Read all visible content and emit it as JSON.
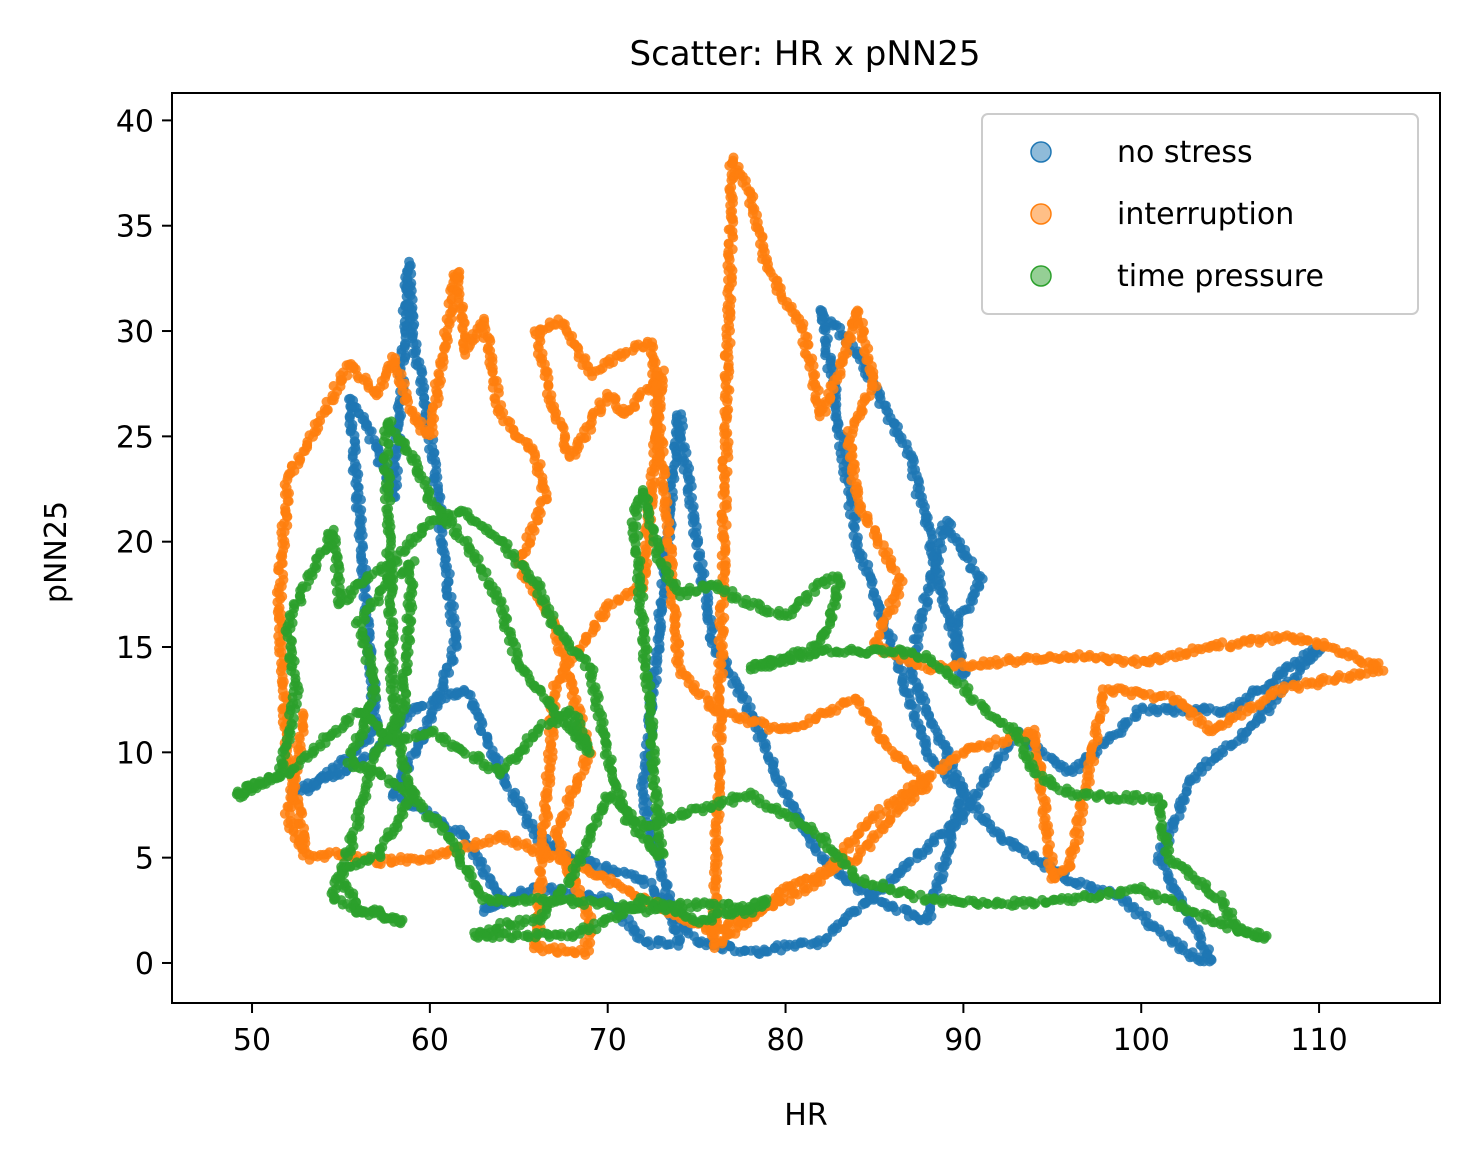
{
  "chart_data": {
    "type": "scatter",
    "title": "Scatter: HR x pNN25",
    "xlabel": "HR",
    "ylabel": "pNN25",
    "xlim": [
      45.5,
      116.8
    ],
    "ylim": [
      -1.9,
      41.3
    ],
    "xticks": [
      50,
      60,
      70,
      80,
      90,
      100,
      110
    ],
    "yticks": [
      0,
      5,
      10,
      15,
      20,
      25,
      30,
      35,
      40
    ],
    "grid": false,
    "legend_position": "top-right",
    "series": [
      {
        "name": "no stress",
        "color": "#1f77b4",
        "trace": [
          [
            53,
            8.2
          ],
          [
            55,
            9.5
          ],
          [
            57,
            11
          ],
          [
            55.5,
            26.8
          ],
          [
            56.5,
            25.5
          ],
          [
            58,
            22
          ],
          [
            58.8,
            33.2
          ],
          [
            59,
            30
          ],
          [
            60,
            25
          ],
          [
            61.5,
            15
          ],
          [
            60,
            11.5
          ],
          [
            58,
            8
          ],
          [
            62,
            6
          ],
          [
            64,
            3
          ],
          [
            63,
            2.5
          ],
          [
            66,
            3.6
          ],
          [
            70,
            3
          ],
          [
            72,
            1
          ],
          [
            74,
            0.9
          ],
          [
            72,
            8
          ],
          [
            74,
            26
          ],
          [
            75,
            20
          ],
          [
            76,
            15
          ],
          [
            78,
            12
          ],
          [
            80,
            8
          ],
          [
            82,
            5
          ],
          [
            85,
            3
          ],
          [
            88,
            2
          ],
          [
            90,
            8
          ],
          [
            87,
            14
          ],
          [
            89,
            21
          ],
          [
            91,
            18
          ],
          [
            89.5,
            16
          ],
          [
            90,
            13.5
          ],
          [
            87,
            24
          ],
          [
            84,
            29
          ],
          [
            82,
            31
          ],
          [
            84,
            20
          ],
          [
            88,
            10
          ],
          [
            92,
            6
          ],
          [
            96,
            4
          ],
          [
            99,
            3
          ],
          [
            101,
            1.5
          ],
          [
            103,
            0.3
          ],
          [
            104,
            0.1
          ],
          [
            101,
            5
          ],
          [
            103,
            9
          ],
          [
            106,
            11
          ],
          [
            110,
            15
          ],
          [
            105,
            12
          ],
          [
            100,
            12
          ],
          [
            96,
            9
          ],
          [
            93,
            11
          ],
          [
            90,
            7
          ],
          [
            86,
            4
          ],
          [
            82,
            1
          ],
          [
            78,
            0.5
          ],
          [
            75,
            1
          ],
          [
            72,
            4
          ],
          [
            68,
            5
          ],
          [
            66,
            6
          ],
          [
            64,
            9
          ],
          [
            62,
            13
          ],
          [
            59,
            12
          ],
          [
            57,
            10
          ],
          [
            55,
            9
          ],
          [
            52,
            8
          ]
        ]
      },
      {
        "name": "interruption",
        "color": "#ff7f0e",
        "trace": [
          [
            53,
            5.5
          ],
          [
            52,
            10
          ],
          [
            51.5,
            17
          ],
          [
            52,
            23
          ],
          [
            54,
            26
          ],
          [
            55.5,
            28.5
          ],
          [
            57,
            27
          ],
          [
            58,
            28.8
          ],
          [
            59,
            26
          ],
          [
            60,
            25
          ],
          [
            61.5,
            32.9
          ],
          [
            62,
            29
          ],
          [
            63,
            30.5
          ],
          [
            64,
            26
          ],
          [
            66,
            24
          ],
          [
            66.5,
            22
          ],
          [
            65,
            19
          ],
          [
            67,
            16
          ],
          [
            69,
            10
          ],
          [
            67,
            6
          ],
          [
            69,
            2
          ],
          [
            68.8,
            0.5
          ],
          [
            66,
            0.7
          ],
          [
            67,
            13
          ],
          [
            70,
            17
          ],
          [
            72,
            18
          ],
          [
            73,
            28
          ],
          [
            71,
            26
          ],
          [
            70,
            27
          ],
          [
            68,
            24
          ],
          [
            67,
            26
          ],
          [
            66,
            30
          ],
          [
            67.5,
            30.5
          ],
          [
            69,
            28
          ],
          [
            71,
            29
          ],
          [
            72.5,
            29.5
          ],
          [
            74,
            14
          ],
          [
            76,
            12
          ],
          [
            80,
            11
          ],
          [
            84,
            12.5
          ],
          [
            86,
            10
          ],
          [
            88,
            8.5
          ],
          [
            86,
            7
          ],
          [
            84,
            5
          ],
          [
            80,
            3.5
          ],
          [
            78,
            2
          ],
          [
            76,
            0.8
          ],
          [
            77,
            38.2
          ],
          [
            78,
            36.5
          ],
          [
            79,
            33
          ],
          [
            81,
            30
          ],
          [
            82,
            26
          ],
          [
            83,
            28
          ],
          [
            84,
            31
          ],
          [
            85,
            27.5
          ],
          [
            83.5,
            25
          ],
          [
            84,
            22
          ],
          [
            86.5,
            18
          ],
          [
            85,
            15
          ],
          [
            88,
            14
          ],
          [
            92,
            14.3
          ],
          [
            96,
            14.6
          ],
          [
            100,
            14.3
          ],
          [
            104,
            15
          ],
          [
            108,
            15.5
          ],
          [
            110,
            15.2
          ],
          [
            112,
            14.5
          ],
          [
            113.5,
            14
          ],
          [
            112.5,
            13.8
          ],
          [
            108,
            13
          ],
          [
            104,
            11
          ],
          [
            102,
            12.5
          ],
          [
            98,
            13
          ],
          [
            96,
            4.5
          ],
          [
            95,
            4
          ],
          [
            94,
            11
          ],
          [
            90,
            10
          ],
          [
            85,
            7
          ],
          [
            82,
            4
          ],
          [
            80,
            3
          ],
          [
            76,
            1.5
          ],
          [
            72,
            3
          ],
          [
            70,
            4
          ],
          [
            67,
            5
          ],
          [
            64,
            6
          ],
          [
            60,
            5
          ],
          [
            57,
            4.8
          ],
          [
            55,
            5.2
          ],
          [
            53,
            5
          ],
          [
            52,
            7
          ],
          [
            53,
            12
          ]
        ]
      },
      {
        "name": "time pressure",
        "color": "#2ca02c",
        "trace": [
          [
            49,
            7.9
          ],
          [
            50,
            8.2
          ],
          [
            51.5,
            9
          ],
          [
            52,
            10.5
          ],
          [
            52.5,
            13
          ],
          [
            52,
            16
          ],
          [
            53,
            18
          ],
          [
            54.5,
            20.5
          ],
          [
            55,
            17
          ],
          [
            56,
            18
          ],
          [
            58,
            19
          ],
          [
            60,
            21
          ],
          [
            62,
            21.5
          ],
          [
            64,
            20
          ],
          [
            66,
            18
          ],
          [
            67,
            16
          ],
          [
            69,
            14
          ],
          [
            70,
            10
          ],
          [
            71,
            7
          ],
          [
            72,
            6
          ],
          [
            73,
            5
          ],
          [
            71.5,
            21
          ],
          [
            72,
            22.5
          ],
          [
            73,
            19
          ],
          [
            74,
            17.5
          ],
          [
            76,
            18
          ],
          [
            78,
            17
          ],
          [
            80,
            16.5
          ],
          [
            82,
            18
          ],
          [
            83,
            18.3
          ],
          [
            82.5,
            16
          ],
          [
            81.5,
            15
          ],
          [
            80,
            14.5
          ],
          [
            78,
            14
          ],
          [
            82,
            14.8
          ],
          [
            86,
            14.8
          ],
          [
            88,
            14.5
          ],
          [
            90,
            13
          ],
          [
            92,
            11.5
          ],
          [
            93,
            11
          ],
          [
            94,
            9
          ],
          [
            96,
            8
          ],
          [
            98,
            7.9
          ],
          [
            101,
            7.8
          ],
          [
            101.5,
            5
          ],
          [
            103,
            4
          ],
          [
            104.5,
            3
          ],
          [
            105.5,
            1.5
          ],
          [
            107,
            1.2
          ],
          [
            104,
            2
          ],
          [
            100,
            3.5
          ],
          [
            96,
            3
          ],
          [
            92,
            2.8
          ],
          [
            88,
            3
          ],
          [
            84,
            4
          ],
          [
            82,
            6
          ],
          [
            80,
            7
          ],
          [
            78,
            8
          ],
          [
            76,
            7.5
          ],
          [
            74,
            7
          ],
          [
            72,
            6.5
          ],
          [
            70,
            8
          ],
          [
            68,
            4
          ],
          [
            66,
            2
          ],
          [
            64,
            1.8
          ],
          [
            62.5,
            1.3
          ],
          [
            68,
            1.3
          ],
          [
            70,
            2
          ],
          [
            72,
            3
          ],
          [
            74,
            2.5
          ],
          [
            75,
            2
          ],
          [
            76,
            2.2
          ],
          [
            78,
            2.5
          ],
          [
            79,
            3
          ],
          [
            78,
            2.6
          ],
          [
            75,
            2.8
          ],
          [
            72,
            2.5
          ],
          [
            70,
            2.8
          ],
          [
            66,
            3
          ],
          [
            63,
            3
          ],
          [
            61,
            6
          ],
          [
            59,
            8
          ],
          [
            57,
            9
          ],
          [
            55.5,
            9.5
          ],
          [
            57,
            13
          ],
          [
            56,
            16
          ],
          [
            57.5,
            18
          ],
          [
            59,
            19
          ],
          [
            58.5,
            12
          ],
          [
            57,
            10
          ],
          [
            55,
            4
          ],
          [
            56,
            2.5
          ],
          [
            57,
            2.4
          ],
          [
            58.5,
            1.9
          ],
          [
            56,
            2.5
          ],
          [
            54.5,
            3
          ],
          [
            55,
            4.5
          ],
          [
            57,
            5
          ],
          [
            59,
            8
          ],
          [
            58,
            11
          ],
          [
            57.5,
            25.8
          ],
          [
            59,
            24
          ],
          [
            60,
            22
          ],
          [
            62,
            20
          ],
          [
            64,
            17
          ],
          [
            65,
            14
          ],
          [
            67,
            12
          ],
          [
            69,
            10
          ],
          [
            68,
            12
          ],
          [
            66,
            11
          ],
          [
            64,
            9
          ],
          [
            62,
            10
          ],
          [
            60,
            11
          ],
          [
            58,
            10.5
          ],
          [
            56,
            12
          ],
          [
            54,
            10.5
          ],
          [
            52,
            9
          ],
          [
            50,
            8.5
          ],
          [
            49,
            8
          ]
        ]
      }
    ]
  }
}
